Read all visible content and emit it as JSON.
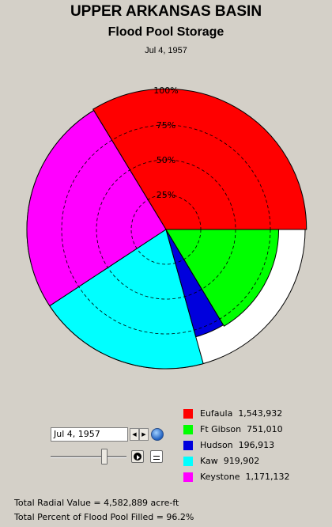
{
  "header": {
    "title": "UPPER ARKANSAS BASIN",
    "subtitle": "Flood Pool Storage",
    "date": "Jul 4, 1957"
  },
  "chart_data": {
    "type": "polar-area",
    "title": "UPPER ARKANSAS BASIN",
    "subtitle": "Flood Pool Storage",
    "radial_ticks": [
      "25%",
      "50%",
      "75%",
      "100%"
    ],
    "radial_tick_values": [
      25,
      50,
      75,
      100
    ],
    "outer_ring_percent": 100,
    "series": [
      {
        "name": "Eufaula",
        "value": 1543932,
        "value_label": "1,543,932",
        "percent_filled": 101,
        "color": "#ff0000"
      },
      {
        "name": "Keystone",
        "value": 1171132,
        "value_label": "1,171,132",
        "percent_filled": 100,
        "color": "#ff00ff"
      },
      {
        "name": "Kaw",
        "value": 919902,
        "value_label": "919,902",
        "percent_filled": 100,
        "color": "#00ffff"
      },
      {
        "name": "Hudson",
        "value": 196913,
        "value_label": "196,913",
        "percent_filled": 80,
        "color": "#0000dd"
      },
      {
        "name": "Ft Gibson",
        "value": 751010,
        "value_label": "751,010",
        "percent_filled": 81,
        "color": "#00ff00"
      }
    ]
  },
  "controls": {
    "date_value": "Jul 4, 1957",
    "prev_glyph": "◀",
    "next_glyph": "▶",
    "slider_value": 0.72
  },
  "legend": [
    {
      "name": "Eufaula",
      "value_label": "1,543,932",
      "color": "#ff0000"
    },
    {
      "name": "Ft Gibson",
      "value_label": "751,010",
      "color": "#00ff00"
    },
    {
      "name": "Hudson",
      "value_label": "196,913",
      "color": "#0000dd"
    },
    {
      "name": "Kaw",
      "value_label": "919,902",
      "color": "#00ffff"
    },
    {
      "name": "Keystone",
      "value_label": "1,171,132",
      "color": "#ff00ff"
    }
  ],
  "totals": {
    "radial_value": "Total Radial Value =  4,582,889 acre-ft",
    "percent_filled": "Total Percent of Flood Pool Filled =  96.2%"
  }
}
